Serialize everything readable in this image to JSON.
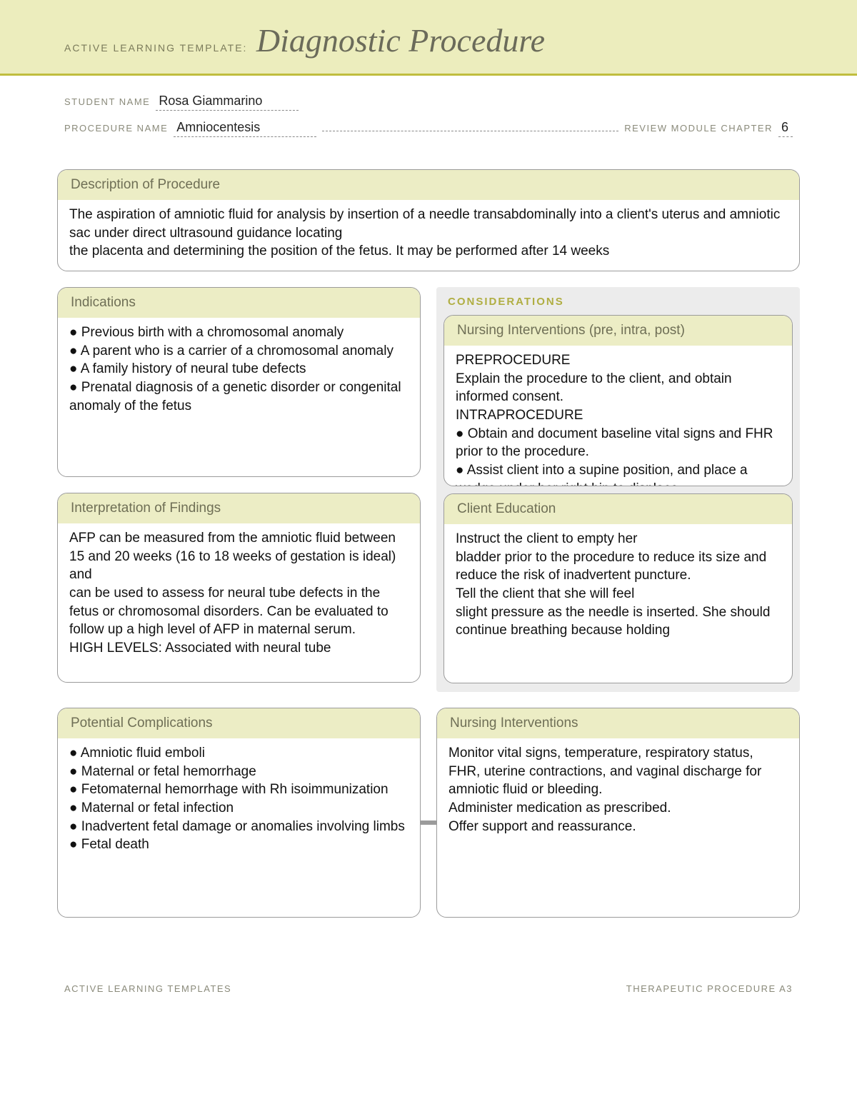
{
  "header": {
    "prefix": "ACTIVE LEARNING TEMPLATE:",
    "title": "Diagnostic Procedure"
  },
  "meta": {
    "student_label": "STUDENT NAME",
    "student_value": "Rosa Giammarino",
    "procedure_label": "PROCEDURE NAME",
    "procedure_value": "Amniocentesis",
    "chapter_label": "REVIEW MODULE CHAPTER",
    "chapter_value": "6"
  },
  "description": {
    "title": "Description of Procedure",
    "body": "The aspiration of amniotic fluid for analysis by insertion of a needle transabdominally into a client's uterus and amniotic sac under direct ultrasound guidance locating\nthe placenta and determining the position of the fetus. It may be performed after 14 weeks"
  },
  "indications": {
    "title": "Indications",
    "body": "● Previous birth with a chromosomal anomaly\n● A parent who is a carrier of a chromosomal anomaly\n● A family history of neural tube defects\n● Prenatal diagnosis of a genetic disorder or congenital\nanomaly of the fetus"
  },
  "considerations_label": "CONSIDERATIONS",
  "nursing_pre": {
    "title": "Nursing Interventions (pre, intra, post)",
    "body": "PREPROCEDURE\nExplain the procedure to the client, and obtain informed consent.\nINTRAPROCEDURE\n● Obtain and document baseline vital signs and FHR prior to the procedure.\n● Assist client into a supine position, and place a wedge under her right hip to displace"
  },
  "interpretation": {
    "title": "Interpretation of Findings",
    "body": "AFP can be measured from the amniotic fluid between 15 and 20 weeks (16 to 18 weeks of gestation is ideal) and\ncan be used to assess for neural tube defects in the fetus or chromosomal disorders. Can be evaluated to follow up a high level of AFP in maternal serum.\nHIGH LEVELS: Associated with neural tube"
  },
  "client_education": {
    "title": "Client Education",
    "body": "Instruct the client to empty her\nbladder prior to the procedure to reduce its size and reduce the risk of inadvertent puncture.\nTell the client that she will feel\nslight pressure as the needle is inserted. She should continue breathing because holding"
  },
  "complications": {
    "title": "Potential Complications",
    "body": "● Amniotic fluid emboli\n● Maternal or fetal hemorrhage\n● Fetomaternal hemorrhage with Rh isoimmunization\n● Maternal or fetal infection\n● Inadvertent fetal damage or anomalies involving limbs\n● Fetal death"
  },
  "nursing_post": {
    "title": "Nursing Interventions",
    "body": "Monitor vital signs, temperature, respiratory status, FHR, uterine contractions, and vaginal discharge for amniotic fluid or bleeding.\nAdminister medication as prescribed.\nOffer support and reassurance."
  },
  "footer": {
    "left": "ACTIVE LEARNING TEMPLATES",
    "right": "THERAPEUTIC PROCEDURE   A3"
  }
}
